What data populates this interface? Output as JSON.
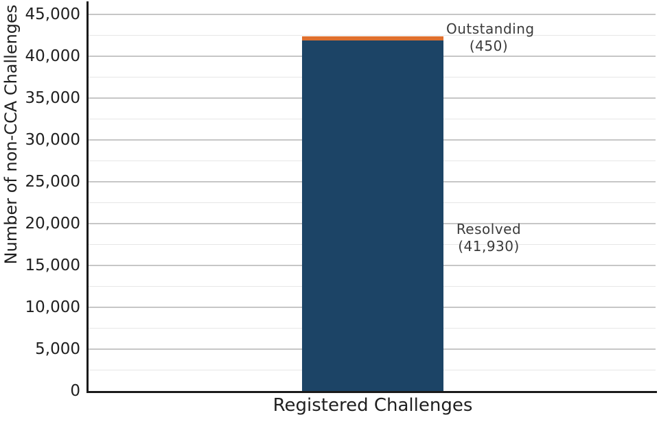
{
  "chart_data": {
    "type": "bar",
    "stacked": true,
    "title": "",
    "categories": [
      "Registered Challenges"
    ],
    "series": [
      {
        "name": "Resolved",
        "values": [
          41930
        ],
        "color": "#1c4466"
      },
      {
        "name": "Outstanding",
        "values": [
          450
        ],
        "color": "#df702e"
      }
    ],
    "xlabel": "Registered Challenges",
    "ylabel": "Number of non-CCA Challenges",
    "ylim": [
      0,
      46600
    ],
    "yticks": [
      {
        "value": 0,
        "label": "0"
      },
      {
        "value": 5000,
        "label": "5,000"
      },
      {
        "value": 10000,
        "label": "10,000"
      },
      {
        "value": 15000,
        "label": "15,000"
      },
      {
        "value": 20000,
        "label": "20,000"
      },
      {
        "value": 25000,
        "label": "25,000"
      },
      {
        "value": 30000,
        "label": "30,000"
      },
      {
        "value": 35000,
        "label": "35,000"
      },
      {
        "value": 40000,
        "label": "40,000"
      },
      {
        "value": 45000,
        "label": "45,000"
      }
    ],
    "minor_tick_step": 2500,
    "grid": "horizontal major and minor gridlines",
    "legend": "none",
    "annotations": [
      {
        "series": "Outstanding",
        "text": "Outstanding",
        "value_label": "(450)"
      },
      {
        "series": "Resolved",
        "text": "Resolved",
        "value_label": "(41,930)"
      }
    ]
  },
  "colors": {
    "background": "#ffffff",
    "resolved_bar": "#1c4466",
    "outstanding_bar": "#df702e",
    "major_gridline": "#c6c6c6",
    "minor_gridline": "#e6e6e6",
    "axis_line": "#1a1a1a",
    "tick_text": "#1f1f1f",
    "annotation_text": "#3a3a3a"
  }
}
